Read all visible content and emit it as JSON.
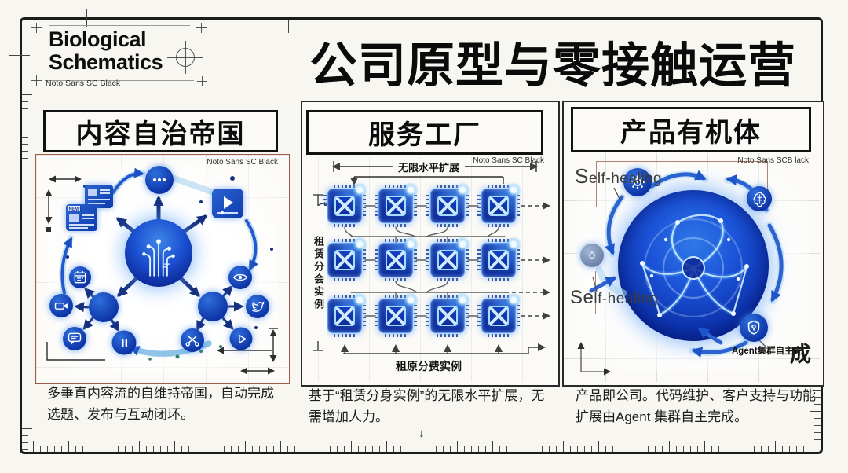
{
  "header": {
    "logo_line1": "Biological",
    "logo_line2": "Schematics",
    "logo_font_note": "Noto Sans SC Black",
    "title": "公司原型与零接触运营"
  },
  "panels": [
    {
      "id": "content-empire",
      "title": "内容自治帝国",
      "font_note": "Noto Sans SC Black",
      "news_tag": "NEWS",
      "caption": "多垂直内容流的自维持帝国，自动完成选题、发布与互动闭环。",
      "icons": [
        "news-card-icon",
        "ellipsis-icon",
        "video-player-icon",
        "calendar-icon",
        "camera-icon",
        "chat-icon",
        "pause-icon",
        "hub-node",
        "scissors-icon",
        "play-icon",
        "twitter-bird-icon",
        "eye-icon",
        "ai-core-sphere"
      ]
    },
    {
      "id": "service-factory",
      "title": "服务工厂",
      "font_note": "Noto Sans SC Black",
      "caption": "基于“租赁分身实例”的无限水平扩展，无需增加人力。",
      "labels": {
        "horizontal_scale": "无限水平扩展",
        "vertical_axis": "租赁分会实例",
        "bottom_axis": "租原分费实例"
      },
      "chip_grid": {
        "rows": 3,
        "cols": 4
      },
      "icons": [
        "cpu-chip-icon"
      ]
    },
    {
      "id": "product-organism",
      "title": "产品有机体",
      "font_note": "Noto Sans SCB lack",
      "caption": "产品即公司。代码维护、客户支持与功能扩展由Agent 集群自主完成。",
      "labels": {
        "self_healing_top": {
          "lead": "S",
          "rest": "elf-healing"
        },
        "self_healing_bottom": {
          "lead": "Se",
          "rest": "lf-healing"
        },
        "agent_cluster": "Agent集群自主完",
        "big_char": "成"
      },
      "icons": [
        "gear-icon",
        "brain-icon",
        "shield-icon",
        "organism-sphere"
      ]
    }
  ],
  "colors": {
    "paper": "#f7f6f1",
    "ink": "#141414",
    "blue": "#1a4fc8",
    "deep_blue": "#0a2b9a",
    "glow_cyan": "#8fd0f4",
    "trace_gray": "#5f5f5f",
    "redline": "#a05a48"
  }
}
